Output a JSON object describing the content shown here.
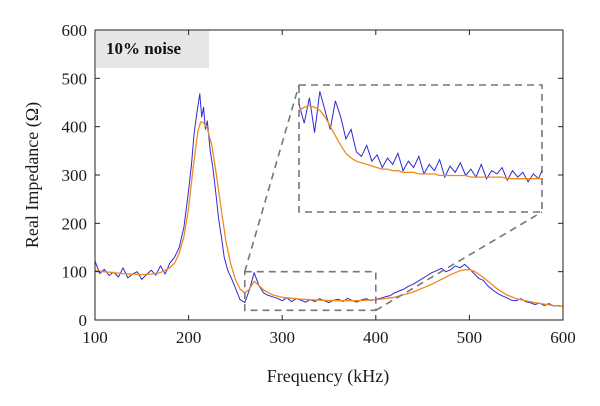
{
  "colors": {
    "noisy": "#2b2bd6",
    "fit": "#f08a1c",
    "zoom_box": "#777777",
    "badge_bg": "#e6e6e6"
  },
  "chart_data": {
    "type": "line",
    "annotation": "10% noise",
    "xlabel": "Frequency (kHz)",
    "ylabel": "Real Impedance (Ω)",
    "xlim": [
      100,
      600
    ],
    "ylim": [
      0,
      600
    ],
    "xticks": [
      "100",
      "200",
      "300",
      "400",
      "500",
      "600"
    ],
    "yticks": [
      "0",
      "100",
      "200",
      "300",
      "400",
      "500",
      "600"
    ],
    "grid": false,
    "legend": "none",
    "series": [
      {
        "style": "noisy",
        "x": [
          100,
          105,
          110,
          115,
          120,
          125,
          130,
          135,
          140,
          145,
          150,
          155,
          160,
          165,
          170,
          175,
          180,
          185,
          190,
          195,
          200,
          203,
          206,
          209,
          212,
          214,
          216,
          218,
          220,
          223,
          226,
          229,
          232,
          235,
          238,
          242,
          246,
          250,
          255,
          260,
          265,
          270,
          275,
          280,
          285,
          290,
          295,
          300,
          305,
          310,
          315,
          320,
          325,
          330,
          335,
          340,
          345,
          350,
          355,
          360,
          365,
          370,
          375,
          380,
          385,
          390,
          395,
          400,
          405,
          410,
          415,
          420,
          425,
          430,
          435,
          440,
          445,
          450,
          455,
          460,
          465,
          470,
          475,
          480,
          485,
          490,
          495,
          500,
          505,
          510,
          515,
          520,
          525,
          530,
          535,
          540,
          545,
          550,
          555,
          560,
          565,
          570,
          575,
          580,
          585,
          590,
          595,
          600
        ],
        "y": [
          122,
          96,
          105,
          92,
          99,
          89,
          108,
          87,
          95,
          100,
          84,
          94,
          103,
          93,
          112,
          95,
          118,
          130,
          150,
          192,
          268,
          320,
          388,
          430,
          468,
          420,
          440,
          395,
          412,
          352,
          315,
          265,
          210,
          172,
          130,
          102,
          85,
          66,
          42,
          36,
          62,
          98,
          72,
          56,
          51,
          48,
          45,
          40,
          46,
          38,
          44,
          41,
          37,
          42,
          38,
          44,
          40,
          36,
          41,
          43,
          38,
          45,
          40,
          37,
          42,
          44,
          40,
          43,
          45,
          48,
          50,
          56,
          60,
          64,
          70,
          74,
          80,
          86,
          92,
          98,
          102,
          107,
          100,
          104,
          112,
          108,
          115,
          106,
          96,
          86,
          82,
          70,
          62,
          55,
          50,
          46,
          41,
          40,
          44,
          38,
          36,
          32,
          35,
          30,
          34,
          29,
          30,
          28
        ]
      },
      {
        "style": "smooth",
        "x": [
          100,
          110,
          120,
          130,
          140,
          150,
          160,
          170,
          180,
          185,
          190,
          195,
          200,
          205,
          210,
          213,
          216,
          220,
          225,
          230,
          235,
          240,
          245,
          250,
          255,
          260,
          265,
          270,
          275,
          280,
          290,
          300,
          320,
          340,
          360,
          380,
          400,
          420,
          440,
          460,
          480,
          490,
          495,
          500,
          505,
          510,
          520,
          530,
          540,
          550,
          560,
          570,
          580,
          590,
          600
        ],
        "y": [
          102,
          100,
          98,
          96,
          95,
          94,
          95,
          98,
          108,
          118,
          138,
          172,
          232,
          318,
          392,
          410,
          408,
          396,
          360,
          296,
          226,
          162,
          116,
          84,
          64,
          56,
          64,
          80,
          72,
          62,
          52,
          47,
          43,
          41,
          40,
          40,
          42,
          47,
          58,
          74,
          94,
          102,
          104,
          104,
          101,
          95,
          80,
          64,
          52,
          44,
          40,
          36,
          33,
          30,
          28
        ]
      }
    ],
    "inset": {
      "source_xlim": [
        260,
        400
      ],
      "source_ylim": [
        20,
        100
      ],
      "x": [
        260,
        263,
        266,
        269,
        272,
        275,
        278,
        281,
        284,
        287,
        290,
        293,
        296,
        299,
        302,
        305,
        308,
        311,
        314,
        317,
        320,
        323,
        326,
        329,
        332,
        335,
        338,
        341,
        344,
        347,
        350,
        353,
        356,
        359,
        362,
        365,
        368,
        371,
        374,
        377,
        380,
        383,
        386,
        389,
        392,
        395,
        398,
        400
      ],
      "noisy": [
        88,
        76,
        92,
        70,
        96,
        84,
        72,
        90,
        80,
        66,
        72,
        58,
        55,
        62,
        52,
        56,
        48,
        54,
        50,
        57,
        46,
        52,
        48,
        55,
        44,
        50,
        46,
        53,
        42,
        49,
        45,
        51,
        43,
        47,
        42,
        50,
        41,
        46,
        44,
        48,
        40,
        46,
        42,
        45,
        39,
        44,
        41,
        46
      ],
      "smooth": [
        84,
        86,
        87,
        86,
        84,
        80,
        74,
        68,
        62,
        57,
        54,
        52,
        51,
        50,
        49,
        48,
        47,
        47,
        46,
        46,
        45,
        45,
        45,
        44,
        44,
        44,
        44,
        43,
        43,
        43,
        43,
        43,
        43,
        42,
        42,
        42,
        42,
        42,
        42,
        42,
        41,
        41,
        41,
        41,
        41,
        41,
        41,
        41
      ]
    }
  }
}
